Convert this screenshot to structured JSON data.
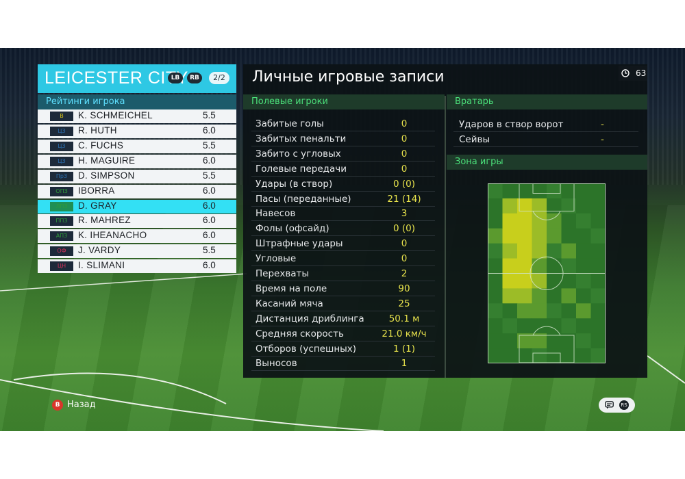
{
  "team": {
    "name": "LEICESTER CITY",
    "lb_label": "LB",
    "rb_label": "RB",
    "page_indicator": "2/2",
    "ratings_title": "Рейтинги игрока",
    "players": [
      {
        "position": "В",
        "name": "K. SCHMEICHEL",
        "rating": "5.5",
        "badge_color": "#d6c21a"
      },
      {
        "position": "ЦЗ",
        "name": "R. HUTH",
        "rating": "6.0",
        "badge_color": "#2b6fb0"
      },
      {
        "position": "ЦЗ",
        "name": "C. FUCHS",
        "rating": "5.5",
        "badge_color": "#2b6fb0"
      },
      {
        "position": "ЦЗ",
        "name": "H. MAGUIRE",
        "rating": "6.0",
        "badge_color": "#2b6fb0"
      },
      {
        "position": "ПрЗ",
        "name": "D. SIMPSON",
        "rating": "5.5",
        "badge_color": "#2b6fb0"
      },
      {
        "position": "ОПЗ",
        "name": "IBORRA",
        "rating": "6.0",
        "badge_color": "#2f9a3b"
      },
      {
        "position": "ЛПЗ",
        "name": "D. GRAY",
        "rating": "6.0",
        "badge_color": "#2f9a3b",
        "selected": true
      },
      {
        "position": "ППЗ",
        "name": "R. MAHREZ",
        "rating": "6.0",
        "badge_color": "#2f9a3b"
      },
      {
        "position": "АПЗ",
        "name": "K. IHEANACHO",
        "rating": "6.0",
        "badge_color": "#2f9a3b"
      },
      {
        "position": "ОФ",
        "name": "J. VARDY",
        "rating": "5.5",
        "badge_color": "#d8315b"
      },
      {
        "position": "ЦН",
        "name": "I. SLIMANI",
        "rating": "6.0",
        "badge_color": "#d8315b"
      }
    ]
  },
  "records": {
    "title": "Личные игровые записи",
    "clock_value": "63",
    "field_players_title": "Полевые игроки",
    "stats": [
      {
        "label": "Забитые голы",
        "value": "0"
      },
      {
        "label": "Забитых пенальти",
        "value": "0"
      },
      {
        "label": "Забито с угловых",
        "value": "0"
      },
      {
        "label": "Голевые передачи",
        "value": "0"
      },
      {
        "label": "Удары (в створ)",
        "value": "0 (0)"
      },
      {
        "label": "Пасы (переданные)",
        "value": "21 (14)"
      },
      {
        "label": "Навесов",
        "value": "3"
      },
      {
        "label": "Фолы (офсайд)",
        "value": "0 (0)"
      },
      {
        "label": "Штрафные удары",
        "value": "0"
      },
      {
        "label": "Угловые",
        "value": "0"
      },
      {
        "label": "Перехваты",
        "value": "2"
      },
      {
        "label": "Время на поле",
        "value": "90"
      },
      {
        "label": "Касаний мяча",
        "value": "25"
      },
      {
        "label": "Дистанция дриблинга",
        "value": "50.1 м"
      },
      {
        "label": "Средняя скорость",
        "value": "21.0 км/ч"
      },
      {
        "label": "Отборов (успешных)",
        "value": "1 (1)"
      },
      {
        "label": "Выносов",
        "value": "1"
      }
    ],
    "goalkeeper_title": "Вратарь",
    "goalkeeper_stats": [
      {
        "label": "Ударов в створ ворот",
        "value": "-"
      },
      {
        "label": "Сейвы",
        "value": "-"
      }
    ],
    "zone_title": "Зона игры"
  },
  "footer": {
    "back_button_glyph": "B",
    "back_label": "Назад",
    "chat_icon": "chat-bubble-icon",
    "rs_icon": "rs-stick-icon",
    "rs_glyph": "RS"
  },
  "colors": {
    "accent_cyan": "#2ec8e4",
    "section_green": "#4be07a",
    "value_yellow": "#e8e34c"
  }
}
